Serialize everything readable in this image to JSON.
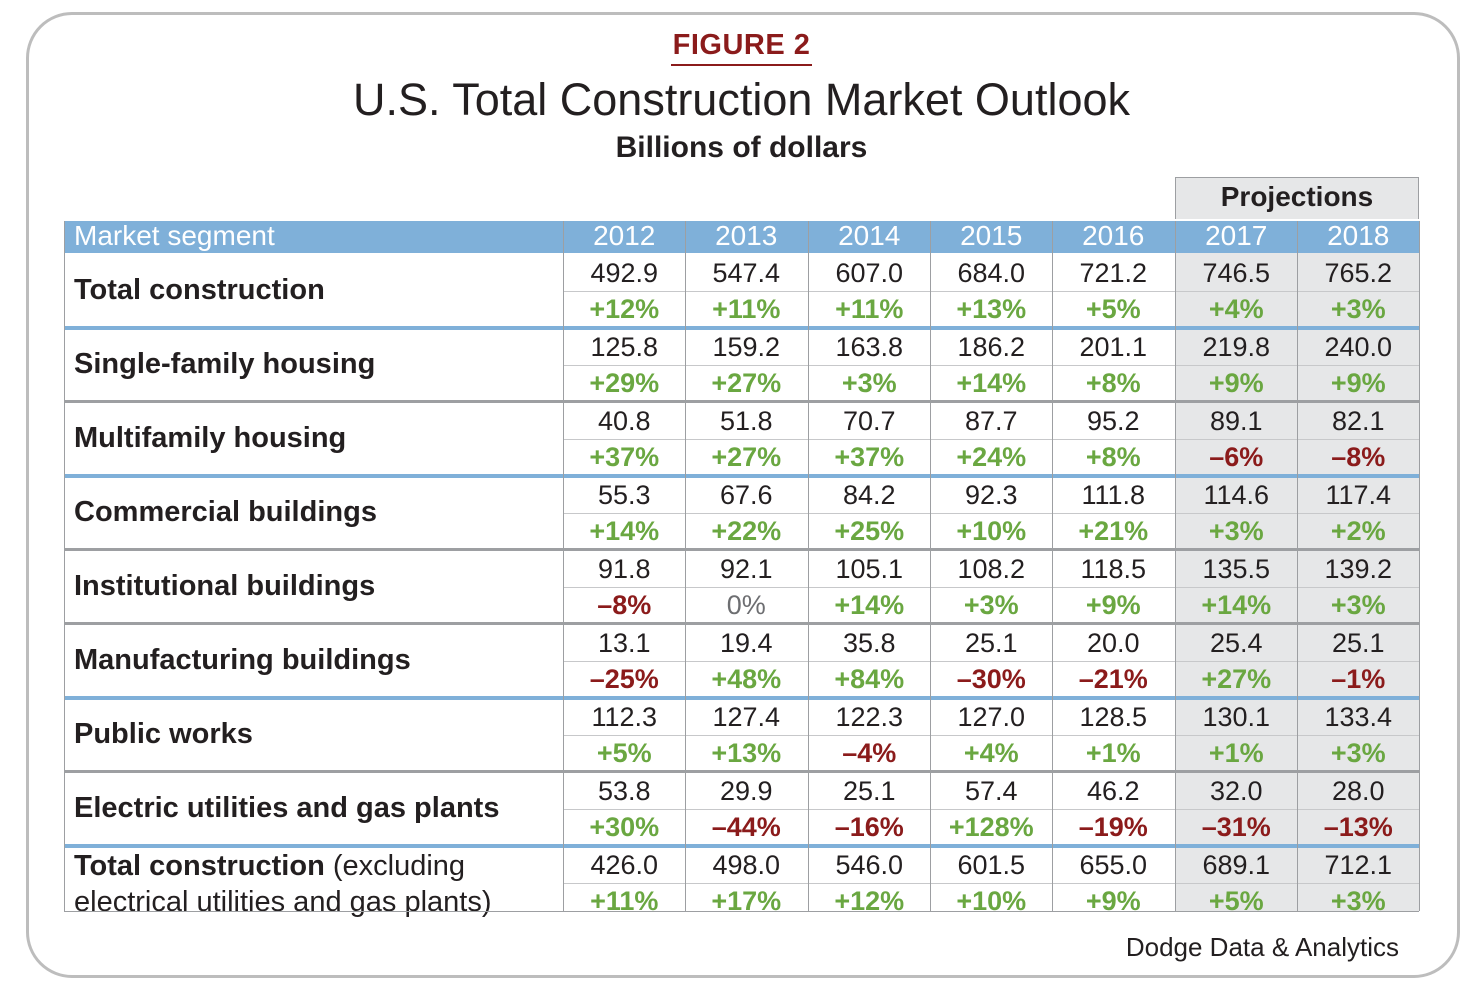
{
  "figure_label": "FIGURE 2",
  "title": "U.S. Total Construction Market Outlook",
  "subtitle": "Billions of dollars",
  "projections_label": "Projections",
  "source": "Dodge Data & Analytics",
  "colors": {
    "header_blue": "#7fb0d9",
    "positive_green": "#6aa741",
    "negative_red": "#8b1b1b",
    "projection_gray": "#e6e7e8"
  },
  "chart_data": {
    "type": "table",
    "header": {
      "segment": "Market segment",
      "years": [
        "2012",
        "2013",
        "2014",
        "2015",
        "2016",
        "2017",
        "2018"
      ]
    },
    "projection_years": [
      "2017",
      "2018"
    ],
    "rows": [
      {
        "segment": "Total construction",
        "values": [
          "492.9",
          "547.4",
          "607.0",
          "684.0",
          "721.2",
          "746.5",
          "765.2"
        ],
        "changes": [
          "+12%",
          "+11%",
          "+11%",
          "+13%",
          "+5%",
          "+4%",
          "+3%"
        ]
      },
      {
        "segment": "Single-family housing",
        "values": [
          "125.8",
          "159.2",
          "163.8",
          "186.2",
          "201.1",
          "219.8",
          "240.0"
        ],
        "changes": [
          "+29%",
          "+27%",
          "+3%",
          "+14%",
          "+8%",
          "+9%",
          "+9%"
        ]
      },
      {
        "segment": "Multifamily housing",
        "values": [
          "40.8",
          "51.8",
          "70.7",
          "87.7",
          "95.2",
          "89.1",
          "82.1"
        ],
        "changes": [
          "+37%",
          "+27%",
          "+37%",
          "+24%",
          "+8%",
          "–6%",
          "–8%"
        ]
      },
      {
        "segment": "Commercial buildings",
        "values": [
          "55.3",
          "67.6",
          "84.2",
          "92.3",
          "111.8",
          "114.6",
          "117.4"
        ],
        "changes": [
          "+14%",
          "+22%",
          "+25%",
          "+10%",
          "+21%",
          "+3%",
          "+2%"
        ]
      },
      {
        "segment": "Institutional buildings",
        "values": [
          "91.8",
          "92.1",
          "105.1",
          "108.2",
          "118.5",
          "135.5",
          "139.2"
        ],
        "changes": [
          "–8%",
          "0%",
          "+14%",
          "+3%",
          "+9%",
          "+14%",
          "+3%"
        ]
      },
      {
        "segment": "Manufacturing buildings",
        "values": [
          "13.1",
          "19.4",
          "35.8",
          "25.1",
          "20.0",
          "25.4",
          "25.1"
        ],
        "changes": [
          "–25%",
          "+48%",
          "+84%",
          "–30%",
          "–21%",
          "+27%",
          "–1%"
        ]
      },
      {
        "segment": "Public works",
        "values": [
          "112.3",
          "127.4",
          "122.3",
          "127.0",
          "128.5",
          "130.1",
          "133.4"
        ],
        "changes": [
          "+5%",
          "+13%",
          "–4%",
          "+4%",
          "+1%",
          "+1%",
          "+3%"
        ]
      },
      {
        "segment": "Electric utilities and gas plants",
        "values": [
          "53.8",
          "29.9",
          "25.1",
          "57.4",
          "46.2",
          "32.0",
          "28.0"
        ],
        "changes": [
          "+30%",
          "–44%",
          "–16%",
          "+128%",
          "–19%",
          "–31%",
          "–13%"
        ]
      },
      {
        "segment": "Total construction",
        "segment_note": "(excluding electrical utilities and gas plants)",
        "values": [
          "426.0",
          "498.0",
          "546.0",
          "601.5",
          "655.0",
          "689.1",
          "712.1"
        ],
        "changes": [
          "+11%",
          "+17%",
          "+12%",
          "+10%",
          "+9%",
          "+5%",
          "+3%"
        ]
      }
    ]
  }
}
